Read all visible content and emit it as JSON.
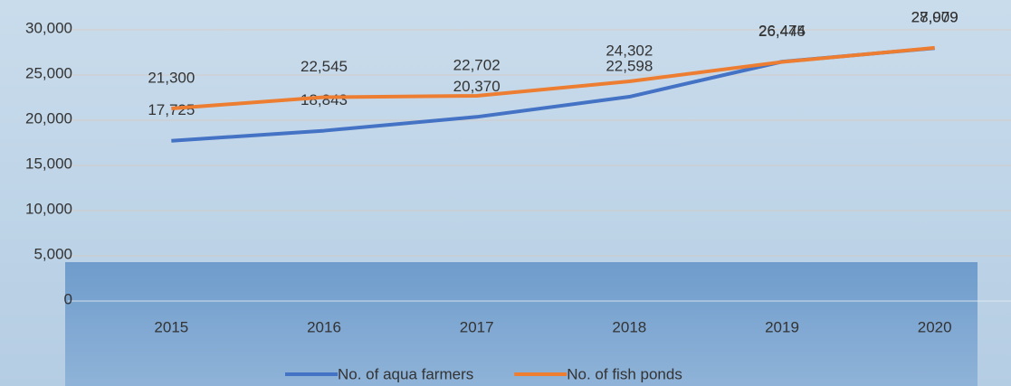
{
  "chart_data": {
    "type": "line",
    "categories": [
      "2015",
      "2016",
      "2017",
      "2018",
      "2019",
      "2020"
    ],
    "series": [
      {
        "name": "No. of aqua farmers",
        "color": "#4472c4",
        "values": [
          17725,
          18843,
          20370,
          22598,
          26474,
          27979
        ],
        "value_labels": [
          "17,725",
          "18,843",
          "20,370",
          "22,598",
          "26,474",
          "27,979"
        ]
      },
      {
        "name": "No. of fish ponds",
        "color": "#ed7d31",
        "values": [
          21300,
          22545,
          22702,
          24302,
          26445,
          28009
        ],
        "value_labels": [
          "21,300",
          "22,545",
          "22,702",
          "24,302",
          "26,445",
          "28,009"
        ]
      }
    ],
    "ylim": [
      0,
      30000
    ],
    "yticks": [
      0,
      {
        "value": 5000,
        "label": "5,000"
      },
      {
        "value": 10000,
        "label": "10,000"
      },
      {
        "value": 15000,
        "label": "15,000"
      },
      {
        "value": 20000,
        "label": "20,000"
      },
      {
        "value": 25000,
        "label": "25,000"
      },
      {
        "value": 30000,
        "label": "30,000"
      }
    ],
    "grid": true,
    "legend": "bottom"
  }
}
